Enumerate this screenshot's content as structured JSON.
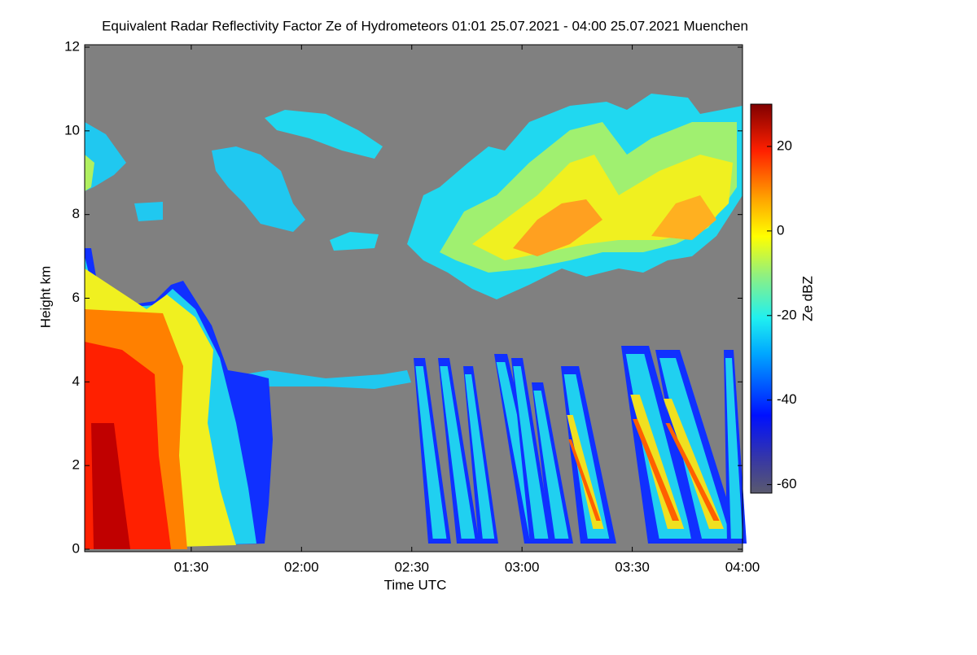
{
  "chart_data": {
    "type": "heatmap",
    "title": "Equivalent Radar Reflectivity Factor Ze of Hydrometeors   01:01 25.07.2021 - 04:00 25.07.2021 Muenchen",
    "xlabel": "Time UTC",
    "ylabel": "Height km",
    "xlim": [
      61,
      240
    ],
    "xticks": [
      {
        "value": 90,
        "label": "01:30"
      },
      {
        "value": 120,
        "label": "02:00"
      },
      {
        "value": 150,
        "label": "02:30"
      },
      {
        "value": 180,
        "label": "03:00"
      },
      {
        "value": 210,
        "label": "03:30"
      },
      {
        "value": 240,
        "label": "04:00"
      }
    ],
    "ylim": [
      0,
      12
    ],
    "yticks": [
      0,
      2,
      4,
      6,
      8,
      10,
      12
    ],
    "colorbar_label": "Ze dBZ",
    "clim": [
      -62,
      30
    ],
    "cticks": [
      -60,
      -40,
      -20,
      0,
      20
    ]
  }
}
